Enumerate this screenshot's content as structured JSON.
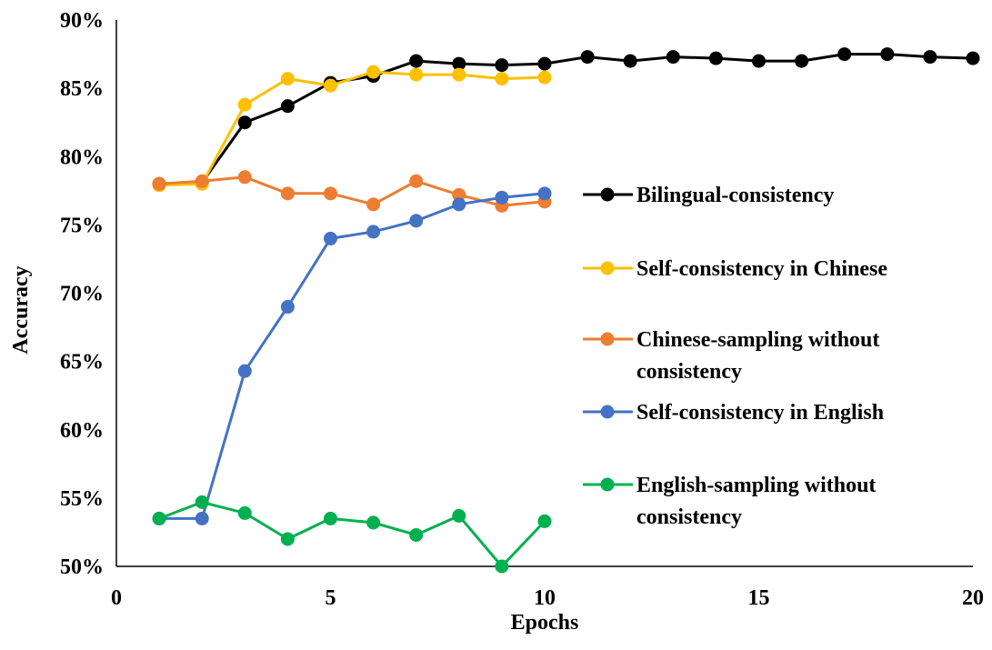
{
  "chart_data": {
    "type": "line",
    "title": "",
    "xlabel": "Epochs",
    "ylabel": "Accuracy",
    "xlim": [
      0,
      20
    ],
    "ylim": [
      0.5,
      0.9
    ],
    "x_ticks": [
      0,
      5,
      10,
      15,
      20
    ],
    "x_tick_labels": [
      "0",
      "5",
      "10",
      "15",
      "20"
    ],
    "y_ticks": [
      0.5,
      0.55,
      0.6,
      0.65,
      0.7,
      0.75,
      0.8,
      0.85,
      0.9
    ],
    "y_tick_labels": [
      "50%",
      "55%",
      "60%",
      "65%",
      "70%",
      "75%",
      "80%",
      "85%",
      "90%"
    ],
    "grid": false,
    "legend_position": "right",
    "series": [
      {
        "name": "Bilingual-consistency",
        "legend_lines": [
          "Bilingual-consistency"
        ],
        "color": "#000000",
        "x": [
          1,
          2,
          3,
          4,
          5,
          6,
          7,
          8,
          9,
          10,
          11,
          12,
          13,
          14,
          15,
          16,
          17,
          18,
          19,
          20
        ],
        "values": [
          0.78,
          0.781,
          0.825,
          0.837,
          0.854,
          0.859,
          0.87,
          0.868,
          0.867,
          0.868,
          0.873,
          0.87,
          0.873,
          0.872,
          0.87,
          0.87,
          0.875,
          0.875,
          0.873,
          0.872
        ]
      },
      {
        "name": "Self-consistency in Chinese",
        "legend_lines": [
          "Self-consistency in Chinese"
        ],
        "color": "#FFC000",
        "x": [
          1,
          2,
          3,
          4,
          5,
          6,
          7,
          8,
          9,
          10
        ],
        "values": [
          0.779,
          0.78,
          0.838,
          0.857,
          0.852,
          0.862,
          0.86,
          0.86,
          0.857,
          0.858
        ]
      },
      {
        "name": "Chinese-sampling without consistency",
        "legend_lines": [
          "Chinese-sampling without",
          "consistency"
        ],
        "color": "#ED7D31",
        "x": [
          1,
          2,
          3,
          4,
          5,
          6,
          7,
          8,
          9,
          10
        ],
        "values": [
          0.78,
          0.782,
          0.785,
          0.773,
          0.773,
          0.765,
          0.782,
          0.772,
          0.764,
          0.767
        ]
      },
      {
        "name": "Self-consistency in English",
        "legend_lines": [
          "Self-consistency in English"
        ],
        "color": "#4472C4",
        "x": [
          1,
          2,
          3,
          4,
          5,
          6,
          7,
          8,
          9,
          10
        ],
        "values": [
          0.535,
          0.535,
          0.643,
          0.69,
          0.74,
          0.745,
          0.753,
          0.765,
          0.77,
          0.773
        ]
      },
      {
        "name": "English-sampling without consistency",
        "legend_lines": [
          "English-sampling without",
          "consistency"
        ],
        "color": "#00B050",
        "x": [
          1,
          2,
          3,
          4,
          5,
          6,
          7,
          8,
          9,
          10
        ],
        "values": [
          0.535,
          0.547,
          0.539,
          0.52,
          0.535,
          0.532,
          0.523,
          0.537,
          0.5,
          0.533
        ]
      }
    ]
  }
}
